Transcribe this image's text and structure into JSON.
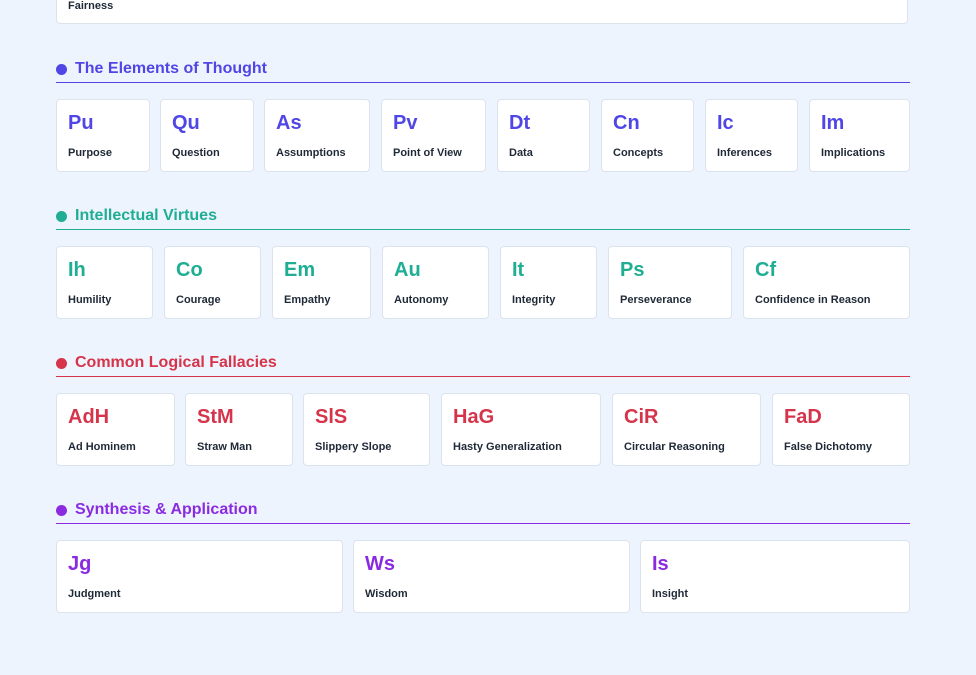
{
  "top_card": {
    "label": "Fairness"
  },
  "sections": [
    {
      "title": "The Elements of Thought",
      "color": "#4f46e5",
      "items": [
        {
          "abbr": "Pu",
          "name": "Purpose"
        },
        {
          "abbr": "Qu",
          "name": "Question"
        },
        {
          "abbr": "As",
          "name": "Assumptions"
        },
        {
          "abbr": "Pv",
          "name": "Point of View"
        },
        {
          "abbr": "Dt",
          "name": "Data"
        },
        {
          "abbr": "Cn",
          "name": "Concepts"
        },
        {
          "abbr": "Ic",
          "name": "Inferences"
        },
        {
          "abbr": "Im",
          "name": "Implications"
        }
      ]
    },
    {
      "title": "Intellectual Virtues",
      "color": "#1fae94",
      "items": [
        {
          "abbr": "Ih",
          "name": "Humility"
        },
        {
          "abbr": "Co",
          "name": "Courage"
        },
        {
          "abbr": "Em",
          "name": "Empathy"
        },
        {
          "abbr": "Au",
          "name": "Autonomy"
        },
        {
          "abbr": "It",
          "name": "Integrity"
        },
        {
          "abbr": "Ps",
          "name": "Perseverance"
        },
        {
          "abbr": "Cf",
          "name": "Confidence in Reason"
        }
      ]
    },
    {
      "title": "Common Logical Fallacies",
      "color": "#d5344a",
      "items": [
        {
          "abbr": "AdH",
          "name": "Ad Hominem"
        },
        {
          "abbr": "StM",
          "name": "Straw Man"
        },
        {
          "abbr": "SlS",
          "name": "Slippery Slope"
        },
        {
          "abbr": "HaG",
          "name": "Hasty Generalization"
        },
        {
          "abbr": "CiR",
          "name": "Circular Reasoning"
        },
        {
          "abbr": "FaD",
          "name": "False Dichotomy"
        }
      ]
    },
    {
      "title": "Synthesis & Application",
      "color": "#8a2be2",
      "items": [
        {
          "abbr": "Jg",
          "name": "Judgment"
        },
        {
          "abbr": "Ws",
          "name": "Wisdom"
        },
        {
          "abbr": "Is",
          "name": "Insight"
        }
      ]
    }
  ]
}
